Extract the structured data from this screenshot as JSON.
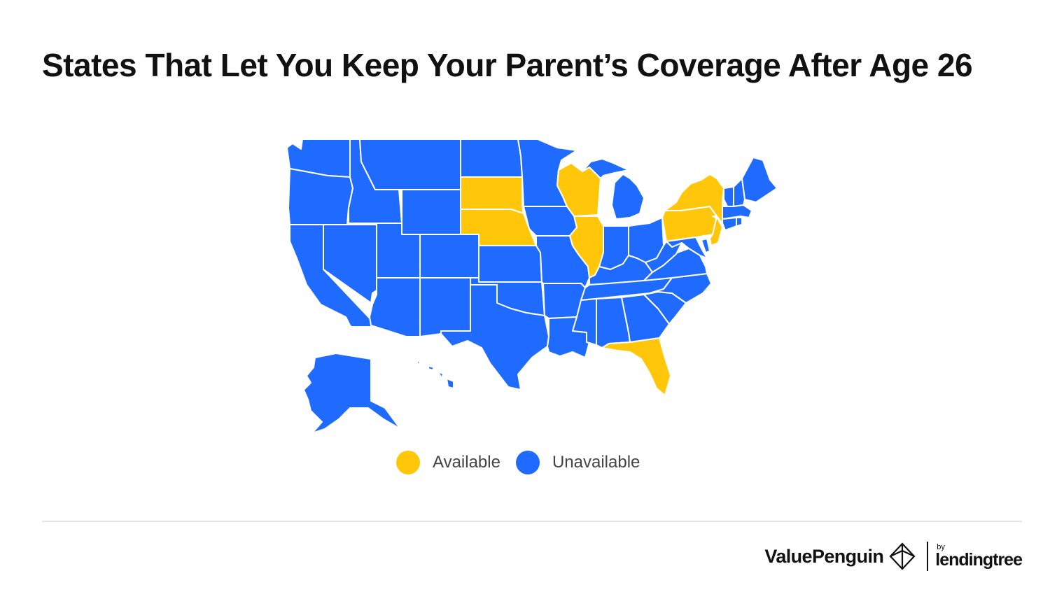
{
  "title": "States That Let You Keep Your Parent’s Coverage After Age 26",
  "colors": {
    "available": "#FFC60A",
    "unavailable": "#1F6BFF",
    "border": "#FFFFFF"
  },
  "legend": {
    "available_label": "Available",
    "unavailable_label": "Unavailable"
  },
  "map": {
    "available_states": [
      "WI",
      "SD",
      "NE",
      "IL",
      "NY",
      "PA",
      "NJ",
      "FL"
    ]
  },
  "footer": {
    "brand": "ValuePenguin",
    "by": "by",
    "partner": "lendingtree"
  }
}
